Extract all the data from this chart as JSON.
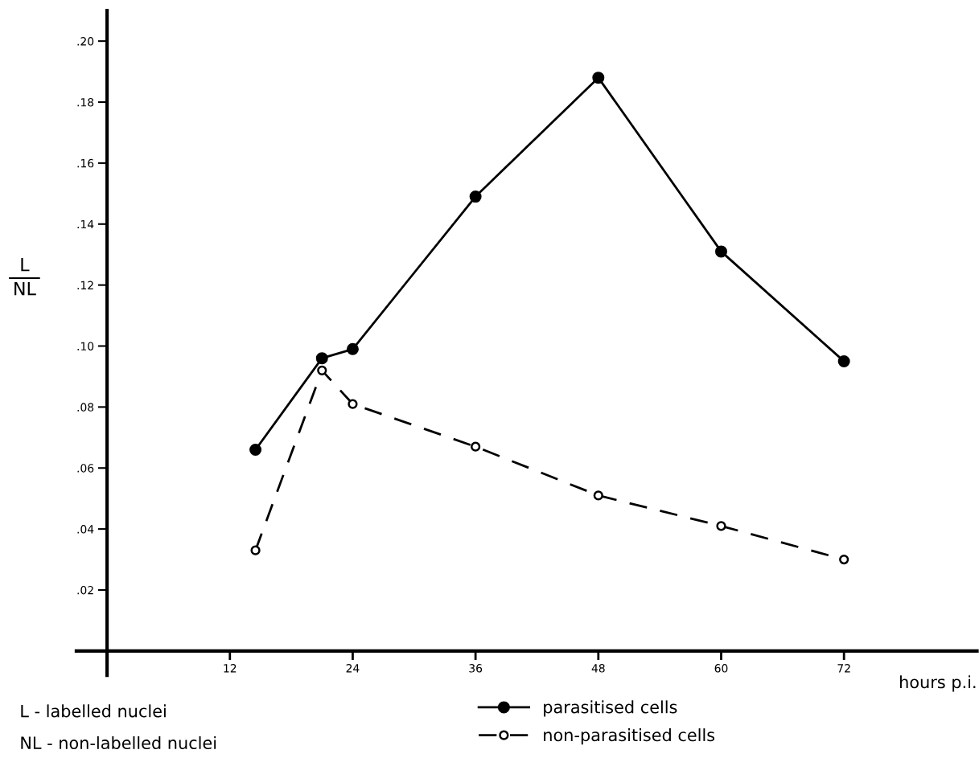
{
  "chart_data": {
    "type": "line",
    "xlabel": "hours p.i.",
    "ylabel": "L\nNL",
    "xlim": [
      -3,
      85
    ],
    "ylim": [
      -0.008,
      0.21
    ],
    "xticks": [
      {
        "value": 0,
        "label": null
      },
      12,
      24,
      36,
      48,
      60,
      72
    ],
    "yticks": [
      {
        "value": 0.02,
        "label": ".02"
      },
      {
        "value": 0.04,
        "label": ".04"
      },
      {
        "value": 0.06,
        "label": ".06"
      },
      {
        "value": 0.08,
        "label": ".08"
      },
      {
        "value": 0.1,
        "label": ".10"
      },
      {
        "value": 0.12,
        "label": ".12"
      },
      {
        "value": 0.14,
        "label": ".14"
      },
      {
        "value": 0.16,
        "label": ".16"
      },
      {
        "value": 0.18,
        "label": ".18"
      },
      {
        "value": 0.2,
        "label": ".20"
      }
    ],
    "series": [
      {
        "name": "parasitised cells",
        "color": "#000000",
        "marker": "circle",
        "line_style": "solid",
        "x": [
          14.5,
          21,
          24,
          36,
          48,
          60,
          72
        ],
        "values": [
          0.066,
          0.096,
          0.099,
          0.149,
          0.188,
          0.131,
          0.095
        ]
      },
      {
        "name": "non-parasitised cells",
        "color": "#000000",
        "marker": "circle",
        "line_style": "dashed",
        "x": [
          14.5,
          21,
          24,
          36,
          48,
          60,
          72
        ],
        "values": [
          0.033,
          0.092,
          0.081,
          0.067,
          0.051,
          0.041,
          0.03
        ]
      }
    ],
    "legend": "bottom",
    "grid": false,
    "annotations": [
      "L - labelled nuclei",
      "NL - non-labelled nuclei"
    ]
  }
}
